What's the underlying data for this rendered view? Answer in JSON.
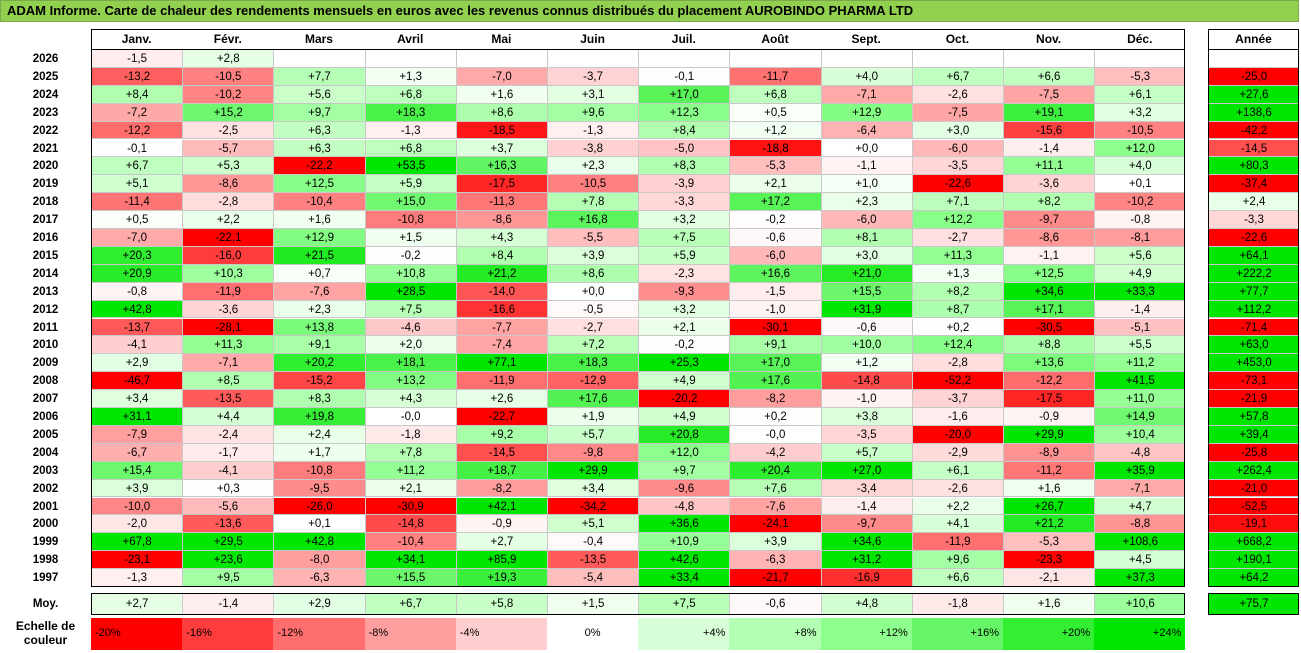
{
  "title": "ADAM Informe. Carte de chaleur des rendements mensuels en euros avec les revenus connus distribués du placement AUROBINDO PHARMA LTD",
  "chart_data": {
    "type": "heatmap",
    "columns": [
      "Janv.",
      "Févr.",
      "Mars",
      "Avril",
      "Mai",
      "Juin",
      "Juil.",
      "Août",
      "Sept.",
      "Oct.",
      "Nov.",
      "Déc."
    ],
    "year_column": "Année",
    "rows": [
      {
        "year": "2026",
        "values": [
          -1.5,
          2.8,
          null,
          null,
          null,
          null,
          null,
          null,
          null,
          null,
          null,
          null
        ],
        "annual": null
      },
      {
        "year": "2025",
        "values": [
          -13.2,
          -10.5,
          7.7,
          1.3,
          -7.0,
          -3.7,
          -0.1,
          -11.7,
          4.0,
          6.7,
          6.6,
          -5.3
        ],
        "annual": -25.0
      },
      {
        "year": "2024",
        "values": [
          8.4,
          -10.2,
          5.6,
          6.8,
          1.6,
          3.1,
          17.0,
          6.8,
          -7.1,
          -2.6,
          -7.5,
          6.1
        ],
        "annual": 27.6
      },
      {
        "year": "2023",
        "values": [
          -7.2,
          15.2,
          9.7,
          18.3,
          8.6,
          9.6,
          12.3,
          0.5,
          12.9,
          -7.5,
          19.1,
          3.2
        ],
        "annual": 138.6
      },
      {
        "year": "2022",
        "values": [
          -12.2,
          -2.5,
          6.3,
          -1.3,
          -18.5,
          -1.3,
          8.4,
          1.2,
          -6.4,
          3.0,
          -15.6,
          -10.5
        ],
        "annual": -42.2
      },
      {
        "year": "2021",
        "values": [
          -0.1,
          -5.7,
          6.3,
          6.8,
          3.7,
          -3.8,
          -5.0,
          -18.8,
          0.0,
          -6.0,
          -1.4,
          12.0
        ],
        "annual": -14.5
      },
      {
        "year": "2020",
        "values": [
          6.7,
          5.3,
          -22.2,
          53.5,
          16.3,
          2.3,
          8.3,
          -5.3,
          -1.1,
          -3.5,
          11.1,
          4.0
        ],
        "annual": 80.3
      },
      {
        "year": "2019",
        "values": [
          5.1,
          -8.6,
          12.5,
          5.9,
          -17.5,
          -10.5,
          -3.9,
          2.1,
          1.0,
          -22.6,
          -3.6,
          0.1
        ],
        "annual": -37.4
      },
      {
        "year": "2018",
        "values": [
          -11.4,
          -2.8,
          -10.4,
          15.0,
          -11.3,
          7.8,
          -3.3,
          17.2,
          2.3,
          7.1,
          8.2,
          -10.2
        ],
        "annual": 2.4
      },
      {
        "year": "2017",
        "values": [
          0.5,
          2.2,
          1.6,
          -10.8,
          -8.6,
          16.8,
          3.2,
          -0.2,
          -6.0,
          12.2,
          -9.7,
          -0.8
        ],
        "annual": -3.3
      },
      {
        "year": "2016",
        "values": [
          -7.0,
          -22.1,
          12.9,
          1.5,
          4.3,
          -5.5,
          7.5,
          -0.6,
          8.1,
          -2.7,
          -8.6,
          -8.1
        ],
        "annual": -22.6
      },
      {
        "year": "2015",
        "values": [
          20.3,
          -16.0,
          21.5,
          -0.2,
          8.4,
          3.9,
          5.9,
          -6.0,
          3.0,
          11.3,
          -1.1,
          5.6
        ],
        "annual": 64.1
      },
      {
        "year": "2014",
        "values": [
          20.9,
          10.3,
          0.7,
          10.8,
          21.2,
          8.6,
          -2.3,
          16.6,
          21.0,
          1.3,
          12.5,
          4.9
        ],
        "annual": 222.2
      },
      {
        "year": "2013",
        "values": [
          -0.8,
          -11.9,
          -7.6,
          28.5,
          -14.0,
          0.0,
          -9.3,
          -1.5,
          15.5,
          8.2,
          34.6,
          33.3
        ],
        "annual": 77.7
      },
      {
        "year": "2012",
        "values": [
          42.8,
          -3.6,
          2.3,
          7.5,
          -16.6,
          -0.5,
          3.2,
          -1.0,
          31.9,
          8.7,
          17.1,
          -1.4
        ],
        "annual": 112.2
      },
      {
        "year": "2011",
        "values": [
          -13.7,
          -28.1,
          13.8,
          -4.6,
          -7.7,
          -2.7,
          2.1,
          -30.1,
          -0.6,
          0.2,
          -30.5,
          -5.1
        ],
        "annual": -71.4
      },
      {
        "year": "2010",
        "values": [
          -4.1,
          11.3,
          9.1,
          2.0,
          -7.4,
          7.2,
          -0.2,
          9.1,
          10.0,
          12.4,
          8.8,
          5.5
        ],
        "annual": 63.0
      },
      {
        "year": "2009",
        "values": [
          2.9,
          -7.1,
          20.2,
          18.1,
          77.1,
          18.3,
          25.3,
          17.0,
          1.2,
          -2.8,
          13.6,
          11.2
        ],
        "annual": 453.0
      },
      {
        "year": "2008",
        "values": [
          -46.7,
          8.5,
          -15.2,
          13.2,
          -11.9,
          -12.9,
          4.9,
          17.6,
          -14.8,
          -52.2,
          -12.2,
          41.5
        ],
        "annual": -73.1
      },
      {
        "year": "2007",
        "values": [
          3.4,
          -13.5,
          8.3,
          4.3,
          2.6,
          17.6,
          -20.2,
          -8.2,
          -1.0,
          -3.7,
          -17.5,
          11.0
        ],
        "annual": -21.9
      },
      {
        "year": "2006",
        "values": [
          31.1,
          4.4,
          19.8,
          -0.0,
          -22.7,
          1.9,
          4.9,
          0.2,
          3.8,
          -1.6,
          -0.9,
          14.9
        ],
        "annual": 57.8
      },
      {
        "year": "2005",
        "values": [
          -7.9,
          -2.4,
          2.4,
          -1.8,
          9.2,
          5.7,
          20.8,
          -0.0,
          -3.5,
          -20.0,
          29.9,
          10.4
        ],
        "annual": 39.4
      },
      {
        "year": "2004",
        "values": [
          -6.7,
          -1.7,
          1.7,
          7.8,
          -14.5,
          -9.8,
          12.0,
          -4.2,
          5.7,
          -2.9,
          -8.9,
          -4.8
        ],
        "annual": -25.8
      },
      {
        "year": "2003",
        "values": [
          15.4,
          -4.1,
          -10.8,
          11.2,
          18.7,
          29.9,
          9.7,
          20.4,
          27.0,
          6.1,
          -11.2,
          35.9
        ],
        "annual": 262.4
      },
      {
        "year": "2002",
        "values": [
          3.9,
          0.3,
          -9.5,
          2.1,
          -8.2,
          3.4,
          -9.6,
          7.6,
          -3.4,
          -2.6,
          1.6,
          -7.1
        ],
        "annual": -21.0
      },
      {
        "year": "2001",
        "values": [
          -10.0,
          -5.6,
          -26.0,
          -30.9,
          42.1,
          -34.2,
          -4.8,
          -7.6,
          -1.4,
          2.2,
          26.7,
          4.7
        ],
        "annual": -52.5
      },
      {
        "year": "2000",
        "values": [
          -2.0,
          -13.6,
          0.1,
          -14.8,
          -0.9,
          5.1,
          36.6,
          -24.1,
          -9.7,
          4.1,
          21.2,
          -8.8
        ],
        "annual": -19.1
      },
      {
        "year": "1999",
        "values": [
          67.8,
          29.5,
          42.8,
          -10.4,
          2.7,
          -0.4,
          10.9,
          3.9,
          34.6,
          -11.9,
          -5.3,
          108.6
        ],
        "annual": 668.2
      },
      {
        "year": "1998",
        "values": [
          -23.1,
          23.6,
          -8.0,
          34.1,
          85.9,
          -13.5,
          42.6,
          -6.3,
          31.2,
          9.6,
          -23.3,
          4.5
        ],
        "annual": 190.1
      },
      {
        "year": "1997",
        "values": [
          -1.3,
          9.5,
          -6.3,
          15.5,
          19.3,
          -5.4,
          33.4,
          -21.7,
          -16.9,
          6.6,
          -2.1,
          37.3
        ],
        "annual": 64.2
      }
    ],
    "average_label": "Moy.",
    "average": [
      2.7,
      -1.4,
      2.9,
      6.7,
      5.8,
      1.5,
      7.5,
      -0.6,
      4.8,
      -1.8,
      1.6,
      10.6
    ],
    "average_annual": 75.7,
    "legend": {
      "label": "Echelle de couleur",
      "stops": [
        {
          "label": "-20%",
          "value": -20,
          "color": "#ff0000"
        },
        {
          "label": "-16%",
          "value": -16,
          "color": "#ff3c3c"
        },
        {
          "label": "-12%",
          "value": -12,
          "color": "#ff6e6e"
        },
        {
          "label": "-8%",
          "value": -8,
          "color": "#ff9e9e"
        },
        {
          "label": "-4%",
          "value": -4,
          "color": "#ffcfcf"
        },
        {
          "label": "0%",
          "value": 0,
          "color": "#ffffff"
        },
        {
          "label": "+4%",
          "value": 4,
          "color": "#d9ffd9"
        },
        {
          "label": "+8%",
          "value": 8,
          "color": "#b3ffb3"
        },
        {
          "label": "+12%",
          "value": 12,
          "color": "#8cff8c"
        },
        {
          "label": "+16%",
          "value": 16,
          "color": "#66f566"
        },
        {
          "label": "+20%",
          "value": 20,
          "color": "#33ee33"
        },
        {
          "label": "+24%",
          "value": 24,
          "color": "#00e600"
        }
      ]
    }
  }
}
